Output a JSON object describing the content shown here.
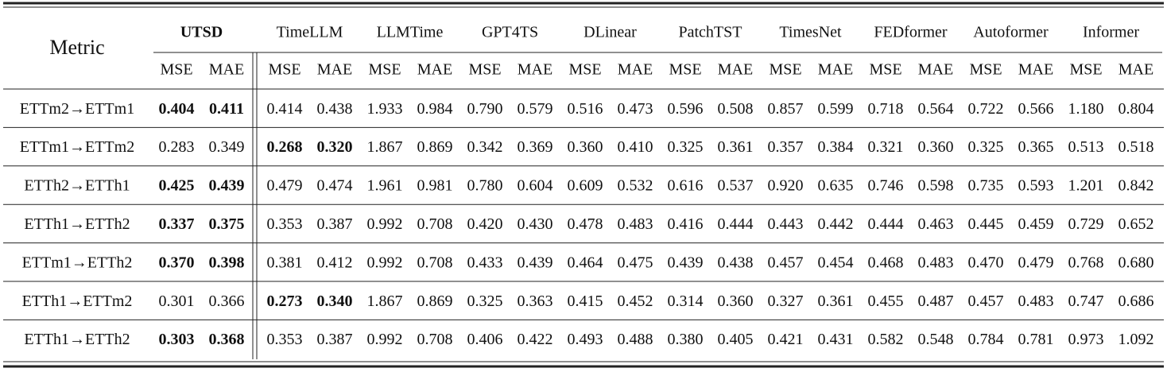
{
  "header": {
    "metric": "Metric",
    "models": [
      "UTSD",
      "TimeLLM",
      "LLMTime",
      "GPT4TS",
      "DLinear",
      "PatchTST",
      "TimesNet",
      "FEDformer",
      "Autoformer",
      "Informer"
    ],
    "bold_models": [
      0
    ],
    "subheaders": [
      "MSE",
      "MAE"
    ]
  },
  "rows": [
    {
      "label": "ETTm2→ETTm1",
      "values": [
        "0.404",
        "0.411",
        "0.414",
        "0.438",
        "1.933",
        "0.984",
        "0.790",
        "0.579",
        "0.516",
        "0.473",
        "0.596",
        "0.508",
        "0.857",
        "0.599",
        "0.718",
        "0.564",
        "0.722",
        "0.566",
        "1.180",
        "0.804"
      ],
      "bold": [
        0,
        1
      ]
    },
    {
      "label": "ETTm1→ETTm2",
      "values": [
        "0.283",
        "0.349",
        "0.268",
        "0.320",
        "1.867",
        "0.869",
        "0.342",
        "0.369",
        "0.360",
        "0.410",
        "0.325",
        "0.361",
        "0.357",
        "0.384",
        "0.321",
        "0.360",
        "0.325",
        "0.365",
        "0.513",
        "0.518"
      ],
      "bold": [
        2,
        3
      ]
    },
    {
      "label": "ETTh2→ETTh1",
      "values": [
        "0.425",
        "0.439",
        "0.479",
        "0.474",
        "1.961",
        "0.981",
        "0.780",
        "0.604",
        "0.609",
        "0.532",
        "0.616",
        "0.537",
        "0.920",
        "0.635",
        "0.746",
        "0.598",
        "0.735",
        "0.593",
        "1.201",
        "0.842"
      ],
      "bold": [
        0,
        1
      ]
    },
    {
      "label": "ETTh1→ETTh2",
      "values": [
        "0.337",
        "0.375",
        "0.353",
        "0.387",
        "0.992",
        "0.708",
        "0.420",
        "0.430",
        "0.478",
        "0.483",
        "0.416",
        "0.444",
        "0.443",
        "0.442",
        "0.444",
        "0.463",
        "0.445",
        "0.459",
        "0.729",
        "0.652"
      ],
      "bold": [
        0,
        1
      ]
    },
    {
      "label": "ETTm1→ETTh2",
      "values": [
        "0.370",
        "0.398",
        "0.381",
        "0.412",
        "0.992",
        "0.708",
        "0.433",
        "0.439",
        "0.464",
        "0.475",
        "0.439",
        "0.438",
        "0.457",
        "0.454",
        "0.468",
        "0.483",
        "0.470",
        "0.479",
        "0.768",
        "0.680"
      ],
      "bold": [
        0,
        1
      ]
    },
    {
      "label": "ETTh1→ETTm2",
      "values": [
        "0.301",
        "0.366",
        "0.273",
        "0.340",
        "1.867",
        "0.869",
        "0.325",
        "0.363",
        "0.415",
        "0.452",
        "0.314",
        "0.360",
        "0.327",
        "0.361",
        "0.455",
        "0.487",
        "0.457",
        "0.483",
        "0.747",
        "0.686"
      ],
      "bold": [
        2,
        3
      ]
    },
    {
      "label": "ETTh1→ETTh2",
      "values": [
        "0.303",
        "0.368",
        "0.353",
        "0.387",
        "0.992",
        "0.708",
        "0.406",
        "0.422",
        "0.493",
        "0.488",
        "0.380",
        "0.405",
        "0.421",
        "0.431",
        "0.582",
        "0.548",
        "0.784",
        "0.781",
        "0.973",
        "1.092"
      ],
      "bold": [
        0,
        1
      ]
    }
  ]
}
